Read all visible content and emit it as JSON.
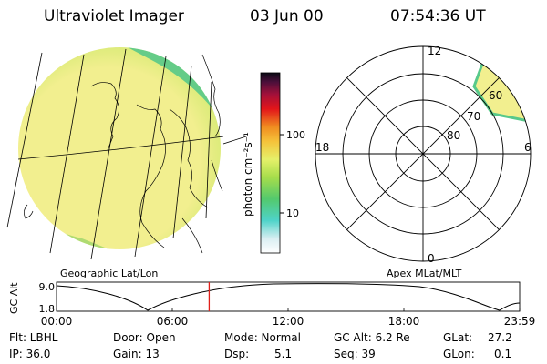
{
  "header": {
    "instrument": "Ultraviolet Imager",
    "date": "03 Jun 00",
    "time": "07:54:36 UT"
  },
  "colorbar": {
    "unit_label": "photon cm⁻²s⁻¹",
    "tick_100": "100",
    "tick_10": "10"
  },
  "polar_plot": {
    "mlt_labels": {
      "top": "12",
      "left": "18",
      "right": "6",
      "bottom": "0"
    },
    "lat_labels": {
      "l60": "60",
      "l70": "70",
      "l80": "80"
    },
    "caption": "Apex MLat/MLT"
  },
  "globe": {
    "caption": "Geographic Lat/Lon"
  },
  "altitude_plot": {
    "axis_label": "GC Alt",
    "y_max": "9.0",
    "y_min": "1.8",
    "x_ticks": [
      "00:00",
      "06:00",
      "12:00",
      "18:00",
      "23:59"
    ],
    "current_time_hours": 7.91
  },
  "info": {
    "flt": "Flt: LBHL",
    "ip": "IP: 36.0",
    "door": "Door: Open",
    "gain": "Gain: 13",
    "mode": "Mode: Normal",
    "dsp_label": "Dsp:",
    "dsp_value": "5.1",
    "gc_alt": "GC Alt: 6.2 Re",
    "seq": "Seq: 39",
    "glat_label": "GLat:",
    "glat_value": "27.2",
    "glon_label": "GLon:",
    "glon_value": "0.1"
  },
  "colors": {
    "disk_fill": "#f2ef8f",
    "disk_edge": "#bfe66a",
    "limb_green": "#58c98a",
    "time_marker": "#e0201a"
  }
}
